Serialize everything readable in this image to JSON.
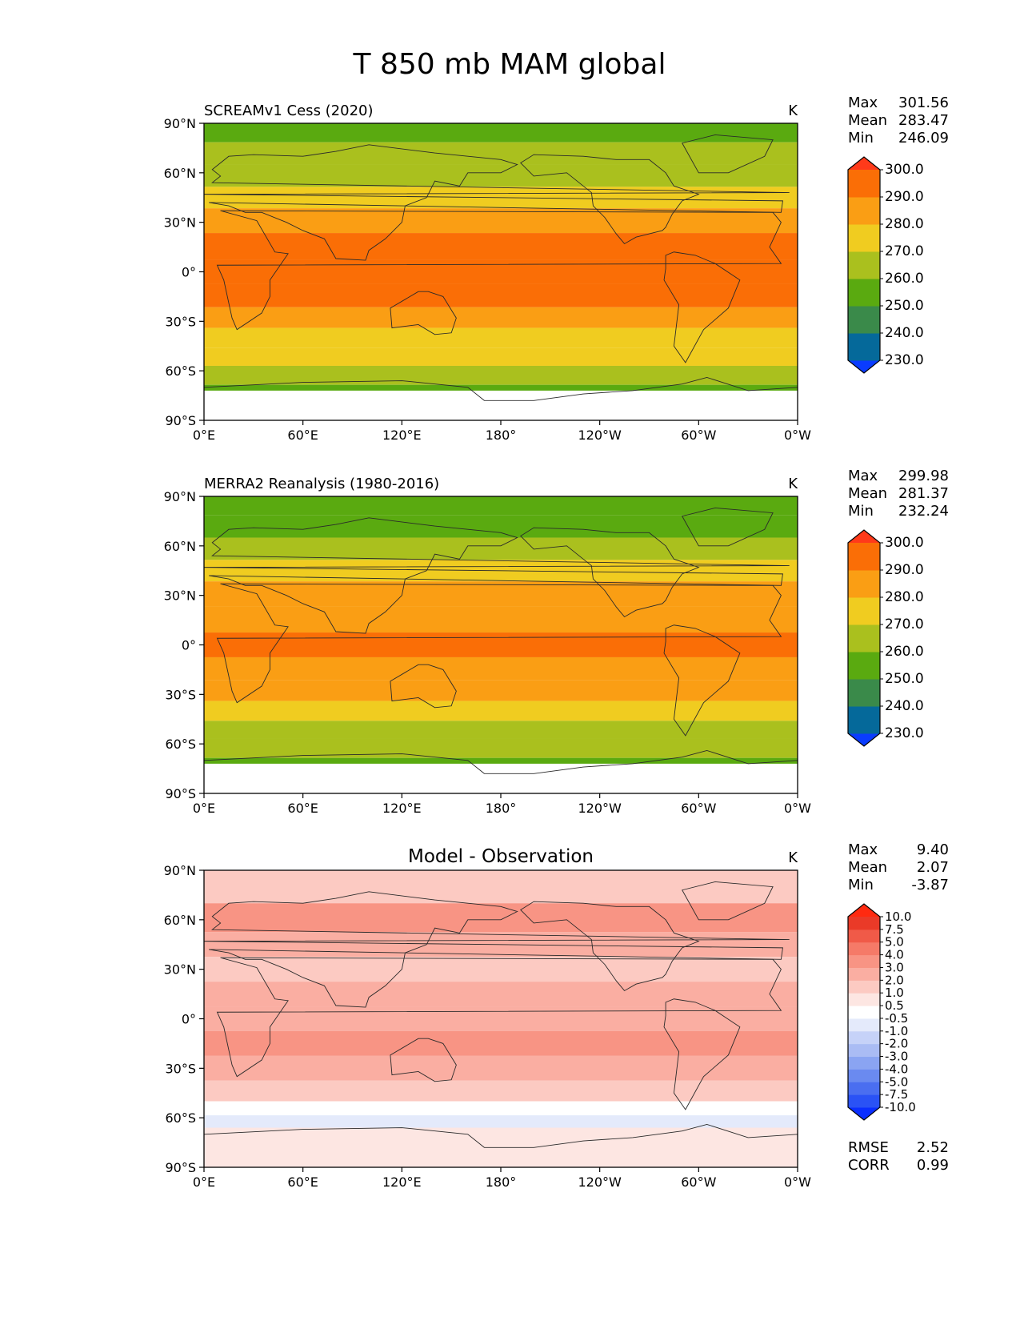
{
  "figure": {
    "title": "T 850 mb MAM global"
  },
  "axes": {
    "lat_ticks": [
      {
        "value": 90,
        "label": "90°N"
      },
      {
        "value": 60,
        "label": "60°N"
      },
      {
        "value": 30,
        "label": "30°N"
      },
      {
        "value": 0,
        "label": "0°"
      },
      {
        "value": -30,
        "label": "30°S"
      },
      {
        "value": -60,
        "label": "60°S"
      },
      {
        "value": -90,
        "label": "90°S"
      }
    ],
    "lon_ticks": [
      {
        "value": 0,
        "label": "0°E"
      },
      {
        "value": 60,
        "label": "60°E"
      },
      {
        "value": 120,
        "label": "120°E"
      },
      {
        "value": 180,
        "label": "180°"
      },
      {
        "value": 240,
        "label": "120°W"
      },
      {
        "value": 300,
        "label": "60°W"
      },
      {
        "value": 360,
        "label": "0°W"
      }
    ]
  },
  "chart_data": [
    {
      "type": "heatmap",
      "title": "SCREAMv1 Cess (2020)",
      "title_style": "left",
      "units": "K",
      "xlim": [
        0,
        360
      ],
      "ylim": [
        -90,
        90
      ],
      "stats": [
        {
          "label": "Max",
          "value": "301.56"
        },
        {
          "label": "Mean",
          "value": "283.47"
        },
        {
          "label": "Min",
          "value": "246.09"
        }
      ],
      "colorbar": {
        "levels": [
          "230.0",
          "240.0",
          "250.0",
          "260.0",
          "270.0",
          "280.0",
          "290.0",
          "300.0"
        ],
        "colors": [
          "#0a3cff",
          "#05699a",
          "#3a8a4a",
          "#5aaa10",
          "#aac01e",
          "#f0cc20",
          "#fa9e14",
          "#fa6e06",
          "#ff3a1a"
        ]
      },
      "bands": [
        {
          "lat": 85,
          "value": 255
        },
        {
          "lat": 72,
          "value": 262
        },
        {
          "lat": 58,
          "value": 266
        },
        {
          "lat": 45,
          "value": 275
        },
        {
          "lat": 32,
          "value": 284
        },
        {
          "lat": 15,
          "value": 292
        },
        {
          "lat": 0,
          "value": 293
        },
        {
          "lat": -15,
          "value": 292
        },
        {
          "lat": -28,
          "value": 286
        },
        {
          "lat": -40,
          "value": 278
        },
        {
          "lat": -52,
          "value": 270
        },
        {
          "lat": -62,
          "value": 264
        },
        {
          "lat": -75,
          "value": 255
        }
      ]
    },
    {
      "type": "heatmap",
      "title": "MERRA2 Reanalysis (1980-2016)",
      "title_style": "left",
      "units": "K",
      "xlim": [
        0,
        360
      ],
      "ylim": [
        -90,
        90
      ],
      "stats": [
        {
          "label": "Max",
          "value": "299.98"
        },
        {
          "label": "Mean",
          "value": "281.37"
        },
        {
          "label": "Min",
          "value": "232.24"
        }
      ],
      "colorbar": {
        "levels": [
          "230.0",
          "240.0",
          "250.0",
          "260.0",
          "270.0",
          "280.0",
          "290.0",
          "300.0"
        ],
        "colors": [
          "#0a3cff",
          "#05699a",
          "#3a8a4a",
          "#5aaa10",
          "#aac01e",
          "#f0cc20",
          "#fa9e14",
          "#fa6e06",
          "#ff3a1a"
        ]
      },
      "bands": [
        {
          "lat": 85,
          "value": 252
        },
        {
          "lat": 72,
          "value": 258
        },
        {
          "lat": 58,
          "value": 262
        },
        {
          "lat": 45,
          "value": 272
        },
        {
          "lat": 32,
          "value": 282
        },
        {
          "lat": 15,
          "value": 288
        },
        {
          "lat": 0,
          "value": 292
        },
        {
          "lat": -15,
          "value": 287
        },
        {
          "lat": -28,
          "value": 283
        },
        {
          "lat": -40,
          "value": 275
        },
        {
          "lat": -52,
          "value": 268
        },
        {
          "lat": -62,
          "value": 262
        },
        {
          "lat": -75,
          "value": 252
        }
      ]
    },
    {
      "type": "heatmap",
      "title": "Model - Observation",
      "title_style": "center",
      "units": "K",
      "xlim": [
        0,
        360
      ],
      "ylim": [
        -90,
        90
      ],
      "stats": [
        {
          "label": "Max",
          "value": "9.40"
        },
        {
          "label": "Mean",
          "value": "2.07"
        },
        {
          "label": "Min",
          "value": "-3.87"
        }
      ],
      "extra_stats": [
        {
          "label": "RMSE",
          "value": "2.52"
        },
        {
          "label": "CORR",
          "value": "0.99"
        }
      ],
      "colorbar": {
        "levels": [
          "-10.0",
          "-7.5",
          "-5.0",
          "-4.0",
          "-3.0",
          "-2.0",
          "-1.0",
          "-0.5",
          "0.5",
          "1.0",
          "2.0",
          "3.0",
          "4.0",
          "5.0",
          "7.5",
          "10.0"
        ],
        "colors": [
          "#0a2eff",
          "#2a52f5",
          "#4a6ef0",
          "#6a8af0",
          "#8aa4f2",
          "#aabcf4",
          "#c6d2f8",
          "#e4eafb",
          "#ffffff",
          "#fde6e2",
          "#fccac2",
          "#faaea2",
          "#f89484",
          "#f57a68",
          "#f05a48",
          "#ea3a28",
          "#ff2a10"
        ]
      },
      "bands": [
        {
          "lat": 80,
          "value": 1.5
        },
        {
          "lat": 60,
          "value": 3.5
        },
        {
          "lat": 45,
          "value": 2.5
        },
        {
          "lat": 30,
          "value": 1.5
        },
        {
          "lat": 15,
          "value": 2.0
        },
        {
          "lat": 0,
          "value": 2.5
        },
        {
          "lat": -15,
          "value": 3.0
        },
        {
          "lat": -30,
          "value": 2.5
        },
        {
          "lat": -45,
          "value": 1.5
        },
        {
          "lat": -55,
          "value": 0.2
        },
        {
          "lat": -62,
          "value": -0.8
        },
        {
          "lat": -70,
          "value": 0.6
        }
      ]
    }
  ]
}
